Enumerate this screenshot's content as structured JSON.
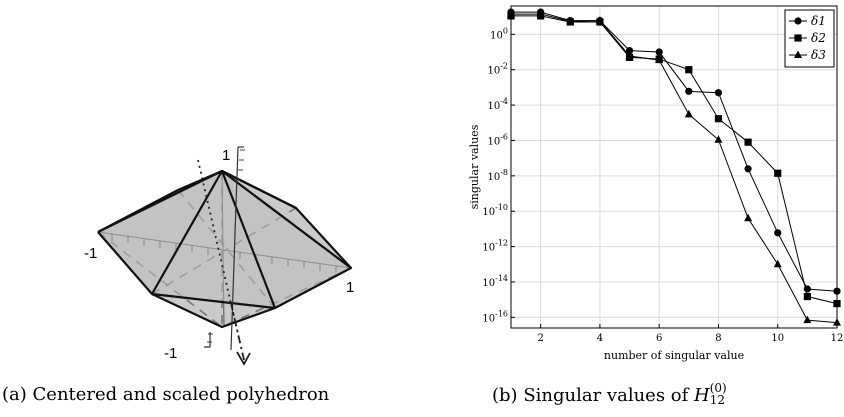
{
  "figure_a": {
    "caption_tag": "(a)",
    "caption_text": "Centered and scaled polyhedron",
    "axis_labels": {
      "top": "1",
      "left": "-1",
      "right": "1",
      "bottom": "-1"
    }
  },
  "figure_b": {
    "caption_tag": "(b)",
    "caption_text": "Singular values of ",
    "caption_math_base": "H",
    "caption_math_sup": "(0)",
    "caption_math_sub": "12"
  },
  "chart_data": {
    "type": "line",
    "title": "",
    "xlabel": "number of singular value",
    "ylabel": "singular values",
    "x": [
      1,
      2,
      3,
      4,
      5,
      6,
      7,
      8,
      9,
      10,
      11,
      12
    ],
    "xlim": [
      1,
      12
    ],
    "xticks": [
      "2",
      "4",
      "6",
      "8",
      "10",
      "12"
    ],
    "ylim": [
      2.5e-17,
      40
    ],
    "yscale": "log",
    "yticks": [
      "10^0",
      "10^-2",
      "10^-4",
      "10^-6",
      "10^-8",
      "10^-10",
      "10^-12",
      "10^-14",
      "10^-16"
    ],
    "grid": true,
    "legend_position": "top-right",
    "series": [
      {
        "name": "δ1",
        "marker": "circle",
        "values": [
          18,
          18,
          6,
          6,
          0.12,
          0.1,
          0.0006,
          0.0005,
          2.5e-08,
          6e-12,
          4e-15,
          3e-15
        ]
      },
      {
        "name": "δ2",
        "marker": "square",
        "values": [
          11,
          11,
          5,
          5,
          0.05,
          0.04,
          0.01,
          1.7e-05,
          8e-07,
          1.4e-08,
          1.5e-15,
          6e-16
        ]
      },
      {
        "name": "δ3",
        "marker": "triangle",
        "values": [
          14,
          14,
          5.5,
          6,
          0.06,
          0.035,
          3e-05,
          1.1e-06,
          4e-11,
          1e-13,
          7e-17,
          5e-17
        ]
      }
    ]
  }
}
